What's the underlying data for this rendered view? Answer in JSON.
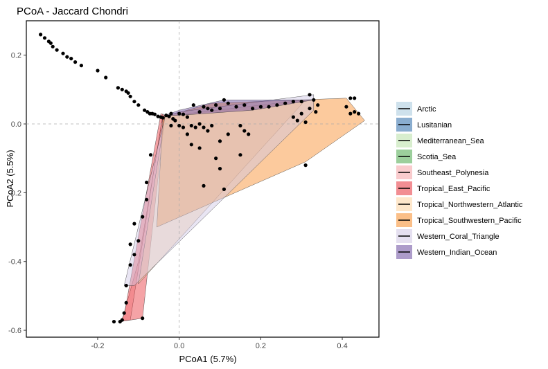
{
  "chart_data": {
    "type": "scatter",
    "title": "PCoA - Jaccard Chondri",
    "xlabel": "PCoA1 (5.7%)",
    "ylabel": "PCoA2 (5.5%)",
    "xlim": [
      -0.375,
      0.49
    ],
    "ylim": [
      -0.62,
      0.3
    ],
    "x_ticks": [
      -0.2,
      0.0,
      0.2,
      0.4
    ],
    "x_tick_labels": [
      "-0.2",
      "0.0",
      "0.2",
      "0.4"
    ],
    "y_ticks": [
      0.2,
      0.0,
      -0.2,
      -0.4,
      -0.6
    ],
    "y_tick_labels": [
      "0.2",
      "0.0",
      "-0.2",
      "-0.4",
      "-0.6"
    ],
    "reference_lines": {
      "x": 0,
      "y": 0
    },
    "grid": false,
    "legend_position": "right",
    "series": [
      {
        "name": "Arctic",
        "color": "#a6c8dc",
        "hull": []
      },
      {
        "name": "Lusitanian",
        "color": "#2a6aa8",
        "hull": []
      },
      {
        "name": "Mediterranean_Sea",
        "color": "#b8e0a6",
        "hull": []
      },
      {
        "name": "Scotia_Sea",
        "color": "#4aa84a",
        "hull": []
      },
      {
        "name": "Southeast_Polynesia",
        "color": "#f4a0a4",
        "hull": [
          [
            -0.04,
            0.02
          ],
          [
            -0.1,
            -0.4
          ],
          [
            -0.14,
            -0.57
          ],
          [
            -0.12,
            -0.57
          ],
          [
            -0.04,
            0.03
          ]
        ]
      },
      {
        "name": "Tropical_East_Pacific",
        "color": "#e8323a",
        "hull": [
          [
            -0.035,
            0.025
          ],
          [
            -0.045,
            0.03
          ],
          [
            -0.135,
            -0.555
          ],
          [
            -0.145,
            -0.575
          ],
          [
            -0.09,
            -0.565
          ]
        ]
      },
      {
        "name": "Tropical_Northwestern_Atlantic",
        "color": "#fdd3a0",
        "hull": [
          [
            -0.035,
            0.02
          ],
          [
            -0.1,
            -0.465
          ],
          [
            0.31,
            0.07
          ],
          [
            0.02,
            0.03
          ]
        ]
      },
      {
        "name": "Tropical_Southwestern_Pacific",
        "color": "#f88a26",
        "hull": [
          [
            -0.04,
            0.02
          ],
          [
            0.08,
            0.06
          ],
          [
            0.41,
            0.075
          ],
          [
            0.455,
            0.01
          ],
          [
            0.31,
            -0.11
          ],
          [
            -0.055,
            -0.3
          ]
        ]
      },
      {
        "name": "Western_Coral_Triangle",
        "color": "#cfc6e4",
        "hull": [
          [
            -0.035,
            0.02
          ],
          [
            0.0,
            0.035
          ],
          [
            0.33,
            0.085
          ],
          [
            0.33,
            0.04
          ],
          [
            -0.11,
            -0.47
          ],
          [
            -0.135,
            -0.47
          ]
        ]
      },
      {
        "name": "Western_Indian_Ocean",
        "color": "#6a4a9e",
        "hull": [
          [
            -0.035,
            0.025
          ],
          [
            0.0,
            0.04
          ],
          [
            0.11,
            0.07
          ],
          [
            0.33,
            0.07
          ],
          [
            0.18,
            0.04
          ],
          [
            0.0,
            0.025
          ]
        ]
      }
    ],
    "points": [
      [
        -0.34,
        0.26
      ],
      [
        -0.33,
        0.25
      ],
      [
        -0.32,
        0.24
      ],
      [
        -0.315,
        0.235
      ],
      [
        -0.31,
        0.225
      ],
      [
        -0.3,
        0.215
      ],
      [
        -0.285,
        0.205
      ],
      [
        -0.275,
        0.195
      ],
      [
        -0.265,
        0.19
      ],
      [
        -0.255,
        0.18
      ],
      [
        -0.24,
        0.17
      ],
      [
        -0.2,
        0.155
      ],
      [
        -0.18,
        0.135
      ],
      [
        -0.15,
        0.105
      ],
      [
        -0.14,
        0.1
      ],
      [
        -0.13,
        0.095
      ],
      [
        -0.125,
        0.09
      ],
      [
        -0.12,
        0.08
      ],
      [
        -0.11,
        0.065
      ],
      [
        -0.1,
        0.055
      ],
      [
        -0.085,
        0.04
      ],
      [
        -0.078,
        0.035
      ],
      [
        -0.072,
        0.03
      ],
      [
        -0.066,
        0.03
      ],
      [
        -0.06,
        0.028
      ],
      [
        -0.052,
        0.022
      ],
      [
        -0.045,
        0.02
      ],
      [
        -0.04,
        0.018
      ],
      [
        -0.032,
        0.025
      ],
      [
        -0.025,
        0.022
      ],
      [
        -0.02,
        0.03
      ],
      [
        -0.015,
        0.015
      ],
      [
        -0.01,
        0.01
      ],
      [
        0.0,
        0.03
      ],
      [
        0.01,
        0.028
      ],
      [
        0.02,
        0.02
      ],
      [
        0.035,
        0.055
      ],
      [
        0.05,
        0.035
      ],
      [
        0.06,
        0.05
      ],
      [
        0.07,
        0.045
      ],
      [
        0.08,
        0.04
      ],
      [
        0.09,
        0.055
      ],
      [
        0.1,
        0.045
      ],
      [
        0.11,
        0.07
      ],
      [
        0.12,
        0.06
      ],
      [
        0.14,
        0.05
      ],
      [
        0.16,
        0.055
      ],
      [
        0.18,
        0.045
      ],
      [
        0.2,
        0.05
      ],
      [
        0.22,
        0.05
      ],
      [
        0.24,
        0.055
      ],
      [
        0.26,
        0.06
      ],
      [
        0.28,
        0.065
      ],
      [
        0.3,
        0.065
      ],
      [
        0.32,
        0.085
      ],
      [
        0.33,
        0.07
      ],
      [
        0.32,
        0.045
      ],
      [
        0.34,
        0.055
      ],
      [
        0.335,
        0.035
      ],
      [
        0.3,
        0.03
      ],
      [
        0.28,
        0.02
      ],
      [
        0.29,
        0.01
      ],
      [
        0.31,
        0.005
      ],
      [
        0.42,
        0.075
      ],
      [
        0.43,
        0.075
      ],
      [
        0.41,
        0.05
      ],
      [
        0.42,
        0.03
      ],
      [
        0.43,
        0.035
      ],
      [
        0.44,
        0.03
      ],
      [
        0.31,
        -0.12
      ],
      [
        -0.02,
        -0.005
      ],
      [
        0.0,
        -0.005
      ],
      [
        0.01,
        -0.01
      ],
      [
        0.02,
        -0.03
      ],
      [
        0.03,
        -0.005
      ],
      [
        0.04,
        -0.01
      ],
      [
        0.05,
        0.0
      ],
      [
        0.06,
        -0.01
      ],
      [
        0.07,
        -0.02
      ],
      [
        0.08,
        -0.005
      ],
      [
        0.1,
        -0.05
      ],
      [
        0.12,
        -0.03
      ],
      [
        0.15,
        -0.005
      ],
      [
        0.16,
        -0.02
      ],
      [
        0.17,
        -0.03
      ],
      [
        0.03,
        -0.06
      ],
      [
        0.05,
        -0.07
      ],
      [
        0.09,
        -0.1
      ],
      [
        0.15,
        -0.09
      ],
      [
        0.1,
        -0.13
      ],
      [
        0.06,
        -0.18
      ],
      [
        0.11,
        -0.19
      ],
      [
        -0.07,
        -0.09
      ],
      [
        -0.08,
        -0.17
      ],
      [
        -0.08,
        -0.22
      ],
      [
        -0.09,
        -0.27
      ],
      [
        -0.11,
        -0.29
      ],
      [
        -0.1,
        -0.34
      ],
      [
        -0.12,
        -0.35
      ],
      [
        -0.11,
        -0.38
      ],
      [
        -0.12,
        -0.41
      ],
      [
        -0.13,
        -0.47
      ],
      [
        -0.135,
        -0.55
      ],
      [
        -0.13,
        -0.52
      ],
      [
        -0.09,
        -0.565
      ],
      [
        -0.14,
        -0.57
      ],
      [
        -0.145,
        -0.575
      ],
      [
        -0.16,
        -0.575
      ]
    ]
  }
}
